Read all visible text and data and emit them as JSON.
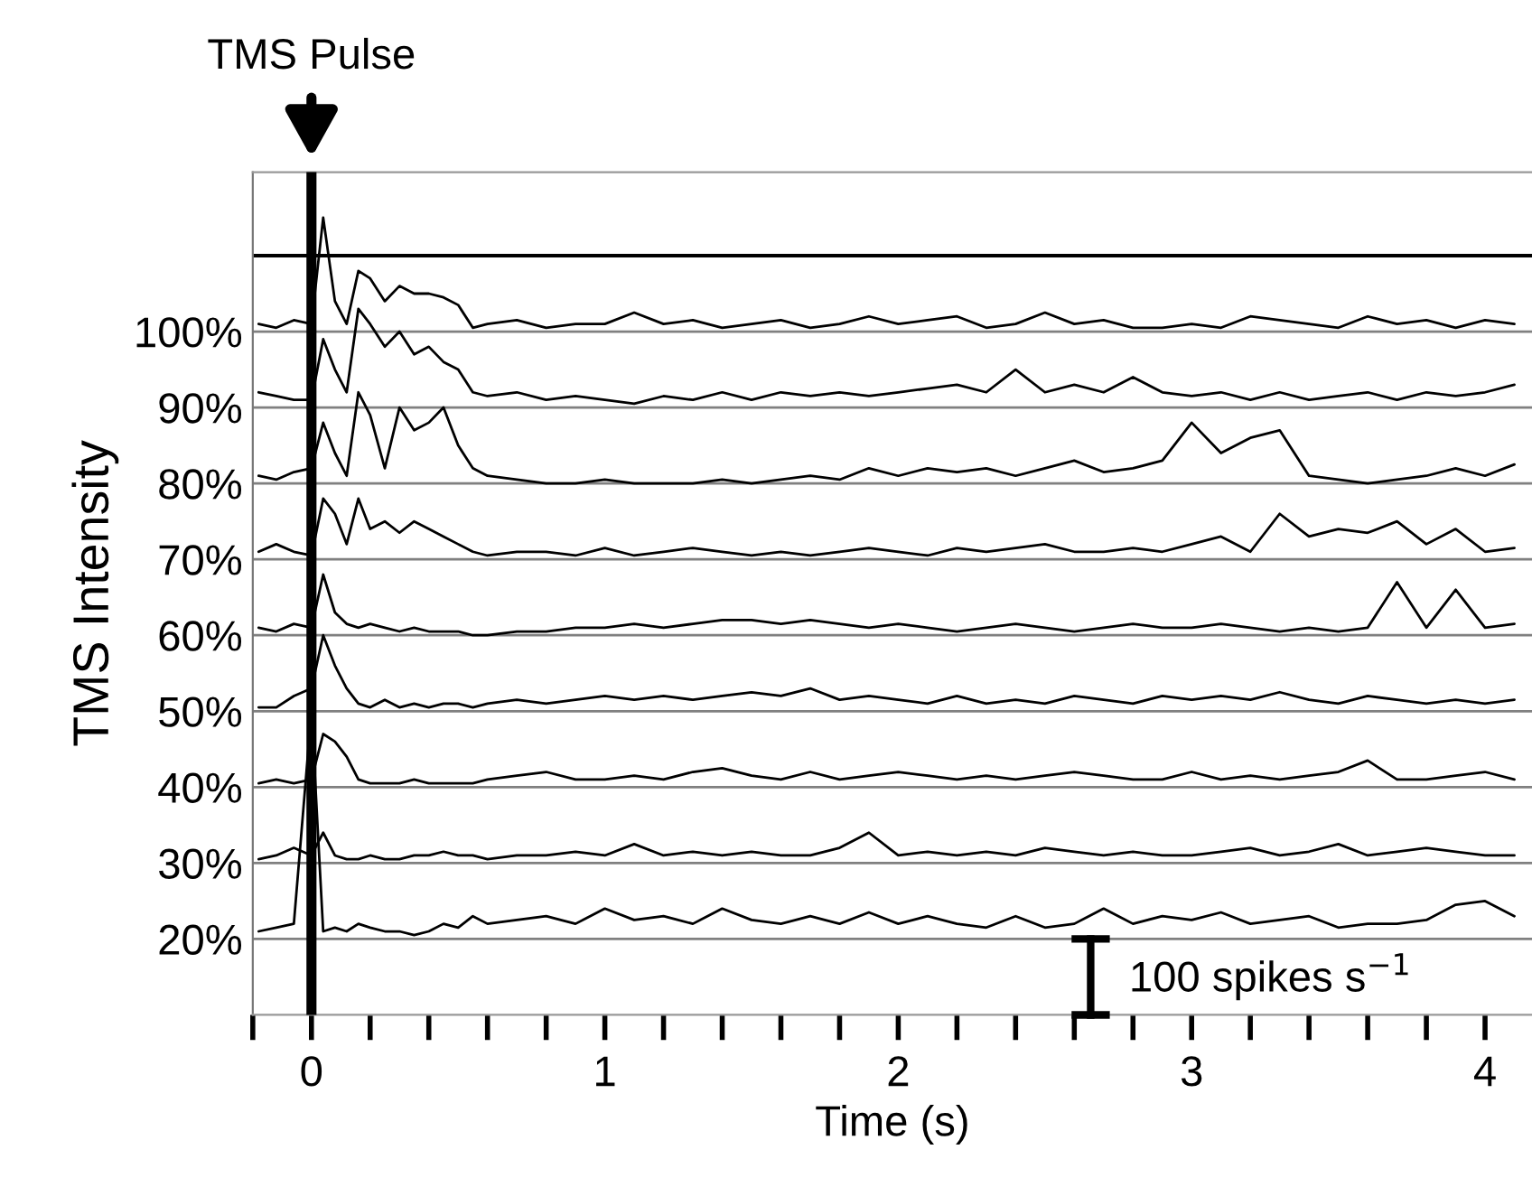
{
  "chart_data": {
    "type": "line",
    "xlabel": "Time (s)",
    "ylabel": "TMS Intensity",
    "x": [
      -0.18,
      -0.12,
      -0.06,
      0,
      0.04,
      0.08,
      0.12,
      0.16,
      0.2,
      0.25,
      0.3,
      0.35,
      0.4,
      0.45,
      0.5,
      0.55,
      0.6,
      0.7,
      0.8,
      0.9,
      1.0,
      1.1,
      1.2,
      1.3,
      1.4,
      1.5,
      1.6,
      1.7,
      1.8,
      1.9,
      2.0,
      2.1,
      2.2,
      2.3,
      2.4,
      2.5,
      2.6,
      2.7,
      2.8,
      2.9,
      3.0,
      3.1,
      3.2,
      3.3,
      3.4,
      3.5,
      3.6,
      3.7,
      3.8,
      3.9,
      4.0,
      4.1
    ],
    "series": [
      {
        "color": "#000000",
        "values": [
          101,
          100.5,
          101.5,
          101,
          115,
          104,
          101,
          108,
          107,
          104,
          106,
          105,
          105,
          104.5,
          103.5,
          100.5,
          101,
          101.5,
          100.5,
          101,
          101,
          102.5,
          101,
          101.5,
          100.5,
          101,
          101.5,
          100.5,
          101,
          102,
          101,
          101.5,
          102,
          100.5,
          101,
          102.5,
          101,
          101.5,
          100.5,
          100.5,
          101,
          100.5,
          102,
          101.5,
          101,
          100.5,
          102,
          101,
          101.5,
          100.5,
          101.5,
          101
        ]
      },
      {
        "color": "#000000",
        "values": [
          92,
          91.5,
          91,
          91,
          99,
          95,
          92,
          103,
          101,
          98,
          100,
          97,
          98,
          96,
          95,
          92,
          91.5,
          92,
          91,
          91.5,
          91,
          90.5,
          91.5,
          91,
          92,
          91,
          92,
          91.5,
          92,
          91.5,
          92,
          92.5,
          93,
          92,
          95,
          92,
          93,
          92,
          94,
          92,
          91.5,
          92,
          91,
          92,
          91,
          91.5,
          92,
          91,
          92,
          91.5,
          92,
          93
        ]
      },
      {
        "color": "#000000",
        "values": [
          81,
          80.5,
          81.5,
          82,
          88,
          84,
          81,
          92,
          89,
          82,
          90,
          87,
          88,
          90,
          85,
          82,
          81,
          80.5,
          80,
          80,
          80.5,
          80,
          80,
          80,
          80.5,
          80,
          80.5,
          81,
          80.5,
          82,
          81,
          82,
          81.5,
          82,
          81,
          82,
          83,
          81.5,
          82,
          83,
          88,
          84,
          86,
          87,
          81,
          80.5,
          80,
          80.5,
          81,
          82,
          81,
          82.5
        ]
      },
      {
        "color": "#000000",
        "values": [
          71,
          72,
          71,
          70.5,
          78,
          76,
          72,
          78,
          74,
          75,
          73.5,
          75,
          74,
          73,
          72,
          71,
          70.5,
          71,
          71,
          70.5,
          71.5,
          70.5,
          71,
          71.5,
          71,
          70.5,
          71,
          70.5,
          71,
          71.5,
          71,
          70.5,
          71.5,
          71,
          71.5,
          72,
          71,
          71,
          71.5,
          71,
          72,
          73,
          71,
          76,
          73,
          74,
          73.5,
          75,
          72,
          74,
          71,
          71.5
        ]
      },
      {
        "color": "#000000",
        "values": [
          61,
          60.5,
          61.5,
          61,
          68,
          63,
          61.5,
          61,
          61.5,
          61,
          60.5,
          61,
          60.5,
          60.5,
          60.5,
          60,
          60,
          60.5,
          60.5,
          61,
          61,
          61.5,
          61,
          61.5,
          62,
          62,
          61.5,
          62,
          61.5,
          61,
          61.5,
          61,
          60.5,
          61,
          61.5,
          61,
          60.5,
          61,
          61.5,
          61,
          61,
          61.5,
          61,
          60.5,
          61,
          60.5,
          61,
          67,
          61,
          66,
          61,
          61.5
        ]
      },
      {
        "color": "#000000",
        "values": [
          50.5,
          50.5,
          52,
          53,
          60,
          56,
          53,
          51,
          50.5,
          51.5,
          50.5,
          51,
          50.5,
          51,
          51,
          50.5,
          51,
          51.5,
          51,
          51.5,
          52,
          51.5,
          52,
          51.5,
          52,
          52.5,
          52,
          53,
          51.5,
          52,
          51.5,
          51,
          52,
          51,
          51.5,
          51,
          52,
          51.5,
          51,
          52,
          51.5,
          52,
          51.5,
          52.5,
          51.5,
          51,
          52,
          51.5,
          51,
          51.5,
          51,
          51.5
        ]
      },
      {
        "color": "#000000",
        "values": [
          40.5,
          41,
          40.5,
          41,
          47,
          46,
          44,
          41,
          40.5,
          40.5,
          40.5,
          41,
          40.5,
          40.5,
          40.5,
          40.5,
          41,
          41.5,
          42,
          41,
          41,
          41.5,
          41,
          42,
          42.5,
          41.5,
          41,
          42,
          41,
          41.5,
          42,
          41.5,
          41,
          41.5,
          41,
          41.5,
          42,
          41.5,
          41,
          41,
          42,
          41,
          41.5,
          41,
          41.5,
          42,
          43.5,
          41,
          41,
          41.5,
          42,
          41
        ]
      },
      {
        "color": "#000000",
        "values": [
          30.5,
          31,
          32,
          31,
          34,
          31,
          30.5,
          30.5,
          31,
          30.5,
          30.5,
          31,
          31,
          31.5,
          31,
          31,
          30.5,
          31,
          31,
          31.5,
          31,
          32.5,
          31,
          31.5,
          31,
          31.5,
          31,
          31,
          32,
          34,
          31,
          31.5,
          31,
          31.5,
          31,
          32,
          31.5,
          31,
          31.5,
          31,
          31,
          31.5,
          32,
          31,
          31.5,
          32.5,
          31,
          31.5,
          32,
          31.5,
          31,
          31
        ]
      },
      {
        "color": "#000000",
        "values": [
          21,
          21.5,
          22,
          50,
          21,
          21.5,
          21,
          22,
          21.5,
          21,
          21,
          20.5,
          21,
          22,
          21.5,
          23,
          22,
          22.5,
          23,
          22,
          24,
          22.5,
          23,
          22,
          24,
          22.5,
          22,
          23,
          22,
          23.5,
          22,
          23,
          22,
          21.5,
          23,
          21.5,
          22,
          24,
          22,
          23,
          22.5,
          23.5,
          22,
          22.5,
          23,
          21.5,
          22,
          22,
          22.5,
          24.5,
          25,
          23
        ]
      }
    ],
    "xlim": [
      -0.2,
      4.16
    ],
    "ylim": [
      10,
      121
    ],
    "xticks": [
      {
        "value": -0.2,
        "label": null
      },
      0,
      {
        "value": 0.2,
        "label": null
      },
      {
        "value": 0.4,
        "label": null
      },
      {
        "value": 0.6,
        "label": null
      },
      {
        "value": 0.8,
        "label": null
      },
      1,
      {
        "value": 1.2,
        "label": null
      },
      {
        "value": 1.4,
        "label": null
      },
      {
        "value": 1.6,
        "label": null
      },
      {
        "value": 1.8,
        "label": null
      },
      2,
      {
        "value": 2.2,
        "label": null
      },
      {
        "value": 2.4,
        "label": null
      },
      {
        "value": 2.6,
        "label": null
      },
      {
        "value": 2.8,
        "label": null
      },
      3,
      {
        "value": 3.2,
        "label": null
      },
      {
        "value": 3.4,
        "label": null
      },
      {
        "value": 3.6,
        "label": null
      },
      {
        "value": 3.8,
        "label": null
      },
      4
    ],
    "yticks": [
      {
        "value": 20,
        "label": "20%"
      },
      {
        "value": 30,
        "label": "30%"
      },
      {
        "value": 40,
        "label": "40%"
      },
      {
        "value": 50,
        "label": "50%"
      },
      {
        "value": 60,
        "label": "60%"
      },
      {
        "value": 70,
        "label": "70%"
      },
      {
        "value": 80,
        "label": "80%"
      },
      {
        "value": 90,
        "label": "90%"
      },
      {
        "value": 100,
        "label": "100%"
      }
    ],
    "grid": "y",
    "ref_lines": [
      {
        "axis": "x",
        "value": 0,
        "label": "TMS Pulse",
        "color": "#000000"
      },
      {
        "axis": "y",
        "value": 110,
        "color": "#000000"
      }
    ],
    "annotations": [
      "100 spikes s$^{−1}$"
    ]
  }
}
